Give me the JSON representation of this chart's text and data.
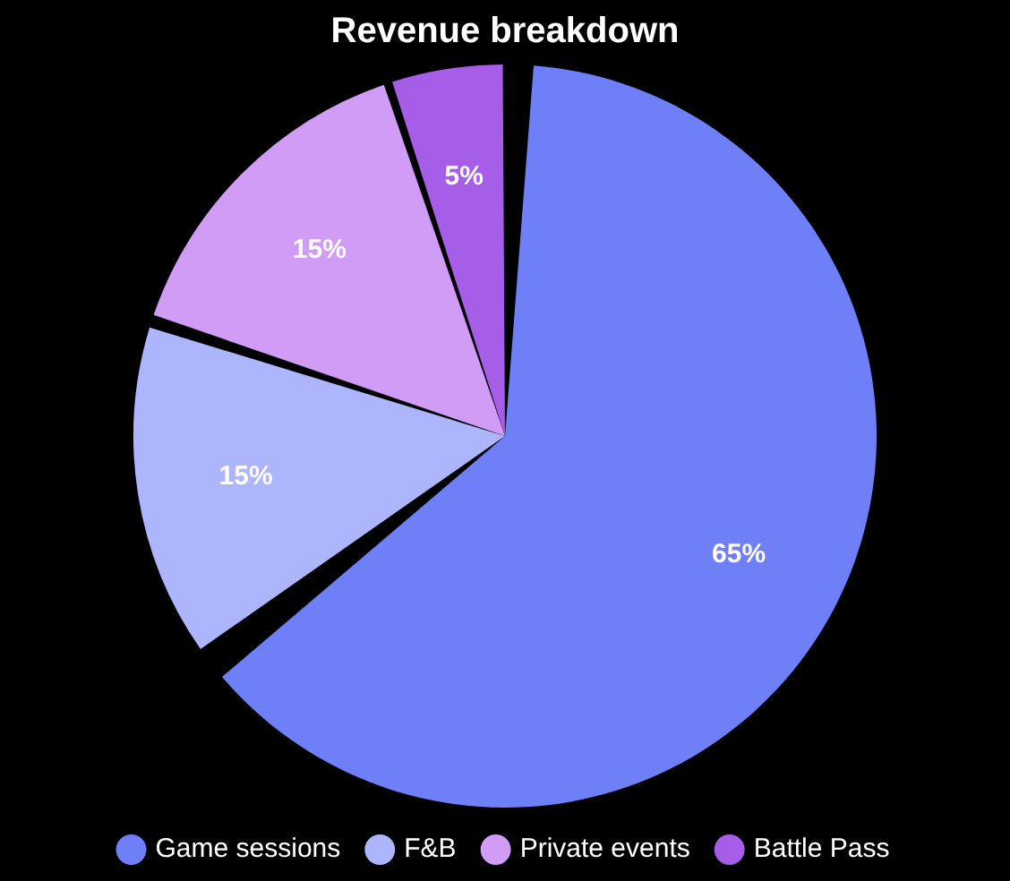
{
  "chart_data": {
    "type": "pie",
    "title": "Revenue breakdown",
    "categories": [
      "Game sessions",
      "F&B",
      "Private events",
      "Battle Pass"
    ],
    "values": [
      65,
      15,
      15,
      5
    ],
    "colors": [
      "#6f7ff7",
      "#adb5fc",
      "#d09cf5",
      "#a65ee8"
    ],
    "value_labels": [
      "65%",
      "15%",
      "15%",
      "5%"
    ],
    "legend": "bottom"
  }
}
